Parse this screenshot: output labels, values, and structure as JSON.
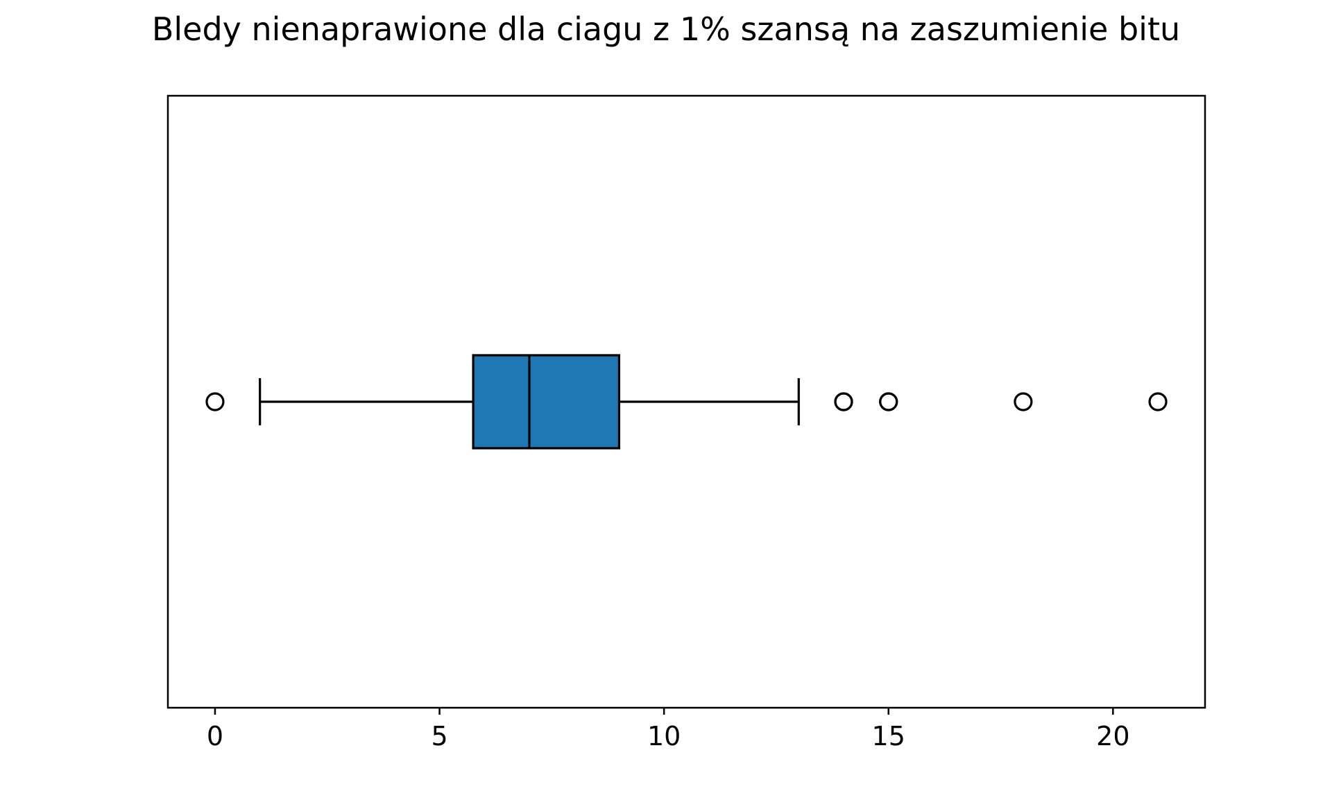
{
  "chart_data": {
    "type": "boxplot",
    "orientation": "horizontal",
    "title": "Bledy nienaprawione dla ciagu z 1% szansą na zaszumienie bitu",
    "xlabel": "",
    "ylabel": "",
    "xlim": [
      -1.05,
      22.05
    ],
    "xticks": [
      0,
      5,
      10,
      15,
      20
    ],
    "xtick_labels": [
      "0",
      "5",
      "10",
      "15",
      "20"
    ],
    "grid": false,
    "box": {
      "whisker_low": 1,
      "q1": 5.75,
      "median": 7,
      "q3": 9,
      "whisker_high": 13,
      "outliers": [
        0,
        14,
        14,
        15,
        15,
        18,
        21
      ]
    },
    "colors": {
      "box_fill": "#1f77b4",
      "line": "#000000"
    }
  }
}
